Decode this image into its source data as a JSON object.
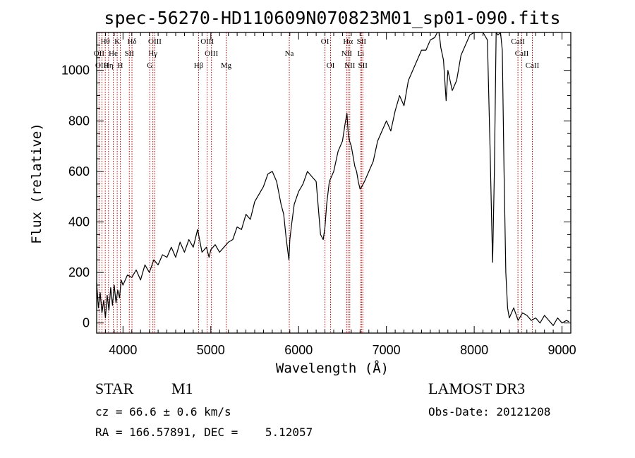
{
  "chart_data": {
    "type": "line",
    "title": "spec-56270-HD110609N070823M01_sp01-090.fits",
    "xlabel": "Wavelength (Å)",
    "ylabel": "Flux (relative)",
    "xlim": [
      3700,
      9100
    ],
    "ylim": [
      -40,
      1150
    ],
    "xticks": [
      4000,
      5000,
      6000,
      7000,
      8000,
      9000
    ],
    "yticks": [
      0,
      200,
      400,
      600,
      800,
      1000
    ],
    "line_color": "#000000",
    "marker_color": "#cc0000",
    "spectrum_x": [
      3700,
      3720,
      3740,
      3760,
      3780,
      3800,
      3820,
      3840,
      3860,
      3880,
      3900,
      3920,
      3940,
      3960,
      3980,
      4000,
      4050,
      4100,
      4150,
      4200,
      4250,
      4300,
      4350,
      4400,
      4450,
      4500,
      4550,
      4600,
      4650,
      4700,
      4750,
      4800,
      4850,
      4900,
      4950,
      4980,
      5000,
      5050,
      5100,
      5150,
      5200,
      5250,
      5300,
      5350,
      5400,
      5450,
      5500,
      5550,
      5600,
      5650,
      5700,
      5750,
      5800,
      5830,
      5860,
      5890,
      5900,
      5920,
      5950,
      6000,
      6050,
      6100,
      6150,
      6200,
      6250,
      6280,
      6300,
      6320,
      6350,
      6400,
      6450,
      6500,
      6530,
      6550,
      6563,
      6580,
      6600,
      6620,
      6640,
      6660,
      6680,
      6700,
      6720,
      6750,
      6800,
      6850,
      6900,
      6950,
      7000,
      7050,
      7100,
      7150,
      7200,
      7250,
      7300,
      7350,
      7400,
      7450,
      7500,
      7550,
      7580,
      7600,
      7620,
      7650,
      7680,
      7700,
      7750,
      7800,
      7850,
      7900,
      7950,
      8000,
      8050,
      8100,
      8150,
      8180,
      8200,
      8210,
      8230,
      8250,
      8270,
      8300,
      8320,
      8340,
      8360,
      8380,
      8390,
      8400,
      8450,
      8500,
      8550,
      8600,
      8650,
      8700,
      8750,
      8800,
      8850,
      8900,
      8950,
      9000,
      9050,
      9080
    ],
    "spectrum_y": [
      160,
      60,
      120,
      40,
      90,
      20,
      110,
      50,
      140,
      70,
      150,
      80,
      130,
      100,
      170,
      150,
      190,
      180,
      210,
      170,
      230,
      200,
      250,
      230,
      270,
      260,
      300,
      260,
      320,
      280,
      330,
      300,
      370,
      280,
      300,
      260,
      290,
      310,
      280,
      300,
      320,
      330,
      380,
      370,
      430,
      410,
      480,
      510,
      540,
      590,
      600,
      560,
      470,
      430,
      330,
      250,
      330,
      390,
      470,
      520,
      550,
      600,
      580,
      560,
      350,
      330,
      380,
      470,
      560,
      600,
      680,
      720,
      790,
      830,
      760,
      720,
      700,
      660,
      620,
      600,
      560,
      530,
      540,
      560,
      600,
      640,
      720,
      760,
      800,
      760,
      840,
      900,
      860,
      960,
      1000,
      1040,
      1080,
      1080,
      1120,
      1130,
      1160,
      1150,
      1090,
      1040,
      880,
      1000,
      920,
      960,
      1060,
      1100,
      1140,
      1150,
      1160,
      1150,
      1120,
      700,
      380,
      240,
      600,
      1150,
      1140,
      1160,
      1080,
      600,
      200,
      60,
      40,
      20,
      60,
      10,
      40,
      30,
      10,
      20,
      0,
      30,
      10,
      -10,
      20,
      0,
      10,
      5
    ],
    "lines": [
      {
        "name": "Hθ",
        "x": 3798,
        "row": 1
      },
      {
        "name": "OII",
        "x": 3727,
        "row": 2
      },
      {
        "name": "OIII",
        "x": 3760,
        "row": 3
      },
      {
        "name": "K",
        "x": 3934,
        "row": 1
      },
      {
        "name": "He",
        "x": 3889,
        "row": 2
      },
      {
        "name": "Hη",
        "x": 3835,
        "row": 3
      },
      {
        "name": "H",
        "x": 3969,
        "row": 3
      },
      {
        "name": "Hδ",
        "x": 4102,
        "row": 1
      },
      {
        "name": "SII",
        "x": 4072,
        "row": 2
      },
      {
        "name": "OIII",
        "x": 4363,
        "row": 1
      },
      {
        "name": "Hγ",
        "x": 4340,
        "row": 2
      },
      {
        "name": "G",
        "x": 4304,
        "row": 3
      },
      {
        "name": "Hβ",
        "x": 4861,
        "row": 3
      },
      {
        "name": "OIII",
        "x": 4959,
        "row": 1
      },
      {
        "name": "OIII",
        "x": 5007,
        "row": 2
      },
      {
        "name": "Mg",
        "x": 5175,
        "row": 3
      },
      {
        "name": "Na",
        "x": 5894,
        "row": 2
      },
      {
        "name": "OI",
        "x": 6300,
        "row": 1
      },
      {
        "name": "OI",
        "x": 6364,
        "row": 3
      },
      {
        "name": "Hα",
        "x": 6563,
        "row": 1
      },
      {
        "name": "NII",
        "x": 6548,
        "row": 2
      },
      {
        "name": "NII",
        "x": 6583,
        "row": 3
      },
      {
        "name": "SII",
        "x": 6716,
        "row": 1
      },
      {
        "name": "Li",
        "x": 6708,
        "row": 2
      },
      {
        "name": "SII",
        "x": 6731,
        "row": 3
      },
      {
        "name": "CaII",
        "x": 8498,
        "row": 1
      },
      {
        "name": "CaII",
        "x": 8542,
        "row": 2
      },
      {
        "name": "CaII",
        "x": 8662,
        "row": 3
      }
    ]
  },
  "info": {
    "object_type": "STAR",
    "subclass": "M1",
    "survey": "LAMOST DR3",
    "cz": "cz = 66.6 ± 0.6 km/s",
    "obs_date": "Obs-Date: 20121208",
    "coords": "RA = 166.57891, DEC =    5.12057"
  }
}
